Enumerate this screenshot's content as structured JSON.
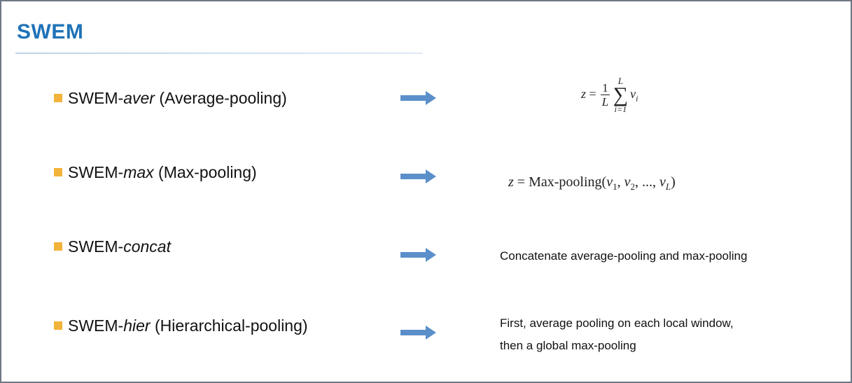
{
  "slide": {
    "title": "SWEM",
    "accent": "#1f73b7",
    "bullet_color": "#f2b33a",
    "arrow_color": "#5b8fc9",
    "items": [
      {
        "prefix": "SWEM-",
        "variant": "aver",
        "suffix": " (Average-pooling)",
        "formula": {
          "lhs": "z",
          "eq": "=",
          "frac_num": "1",
          "frac_den": "L",
          "sum_upper": "L",
          "sum_symbol": "∑",
          "sum_lower": "i=1",
          "term": "v",
          "term_sub": "i"
        }
      },
      {
        "prefix": "SWEM-",
        "variant": "max",
        "suffix": " (Max-pooling)",
        "formula": {
          "lhs": "z",
          "eq": "=",
          "op": "Max-pooling",
          "open": "(",
          "v": "v",
          "s1": "1",
          "s2": "2",
          "sL": "L",
          "sep": ",",
          "dots": "...",
          "close": ")"
        }
      },
      {
        "prefix": "SWEM-",
        "variant": "concat",
        "suffix": "",
        "description": "Concatenate average-pooling and max-pooling"
      },
      {
        "prefix": "SWEM-",
        "variant": "hier",
        "suffix": " (Hierarchical-pooling)",
        "description_line1": "First, average pooling on each local window,",
        "description_line2": "then a global max-pooling"
      }
    ]
  }
}
